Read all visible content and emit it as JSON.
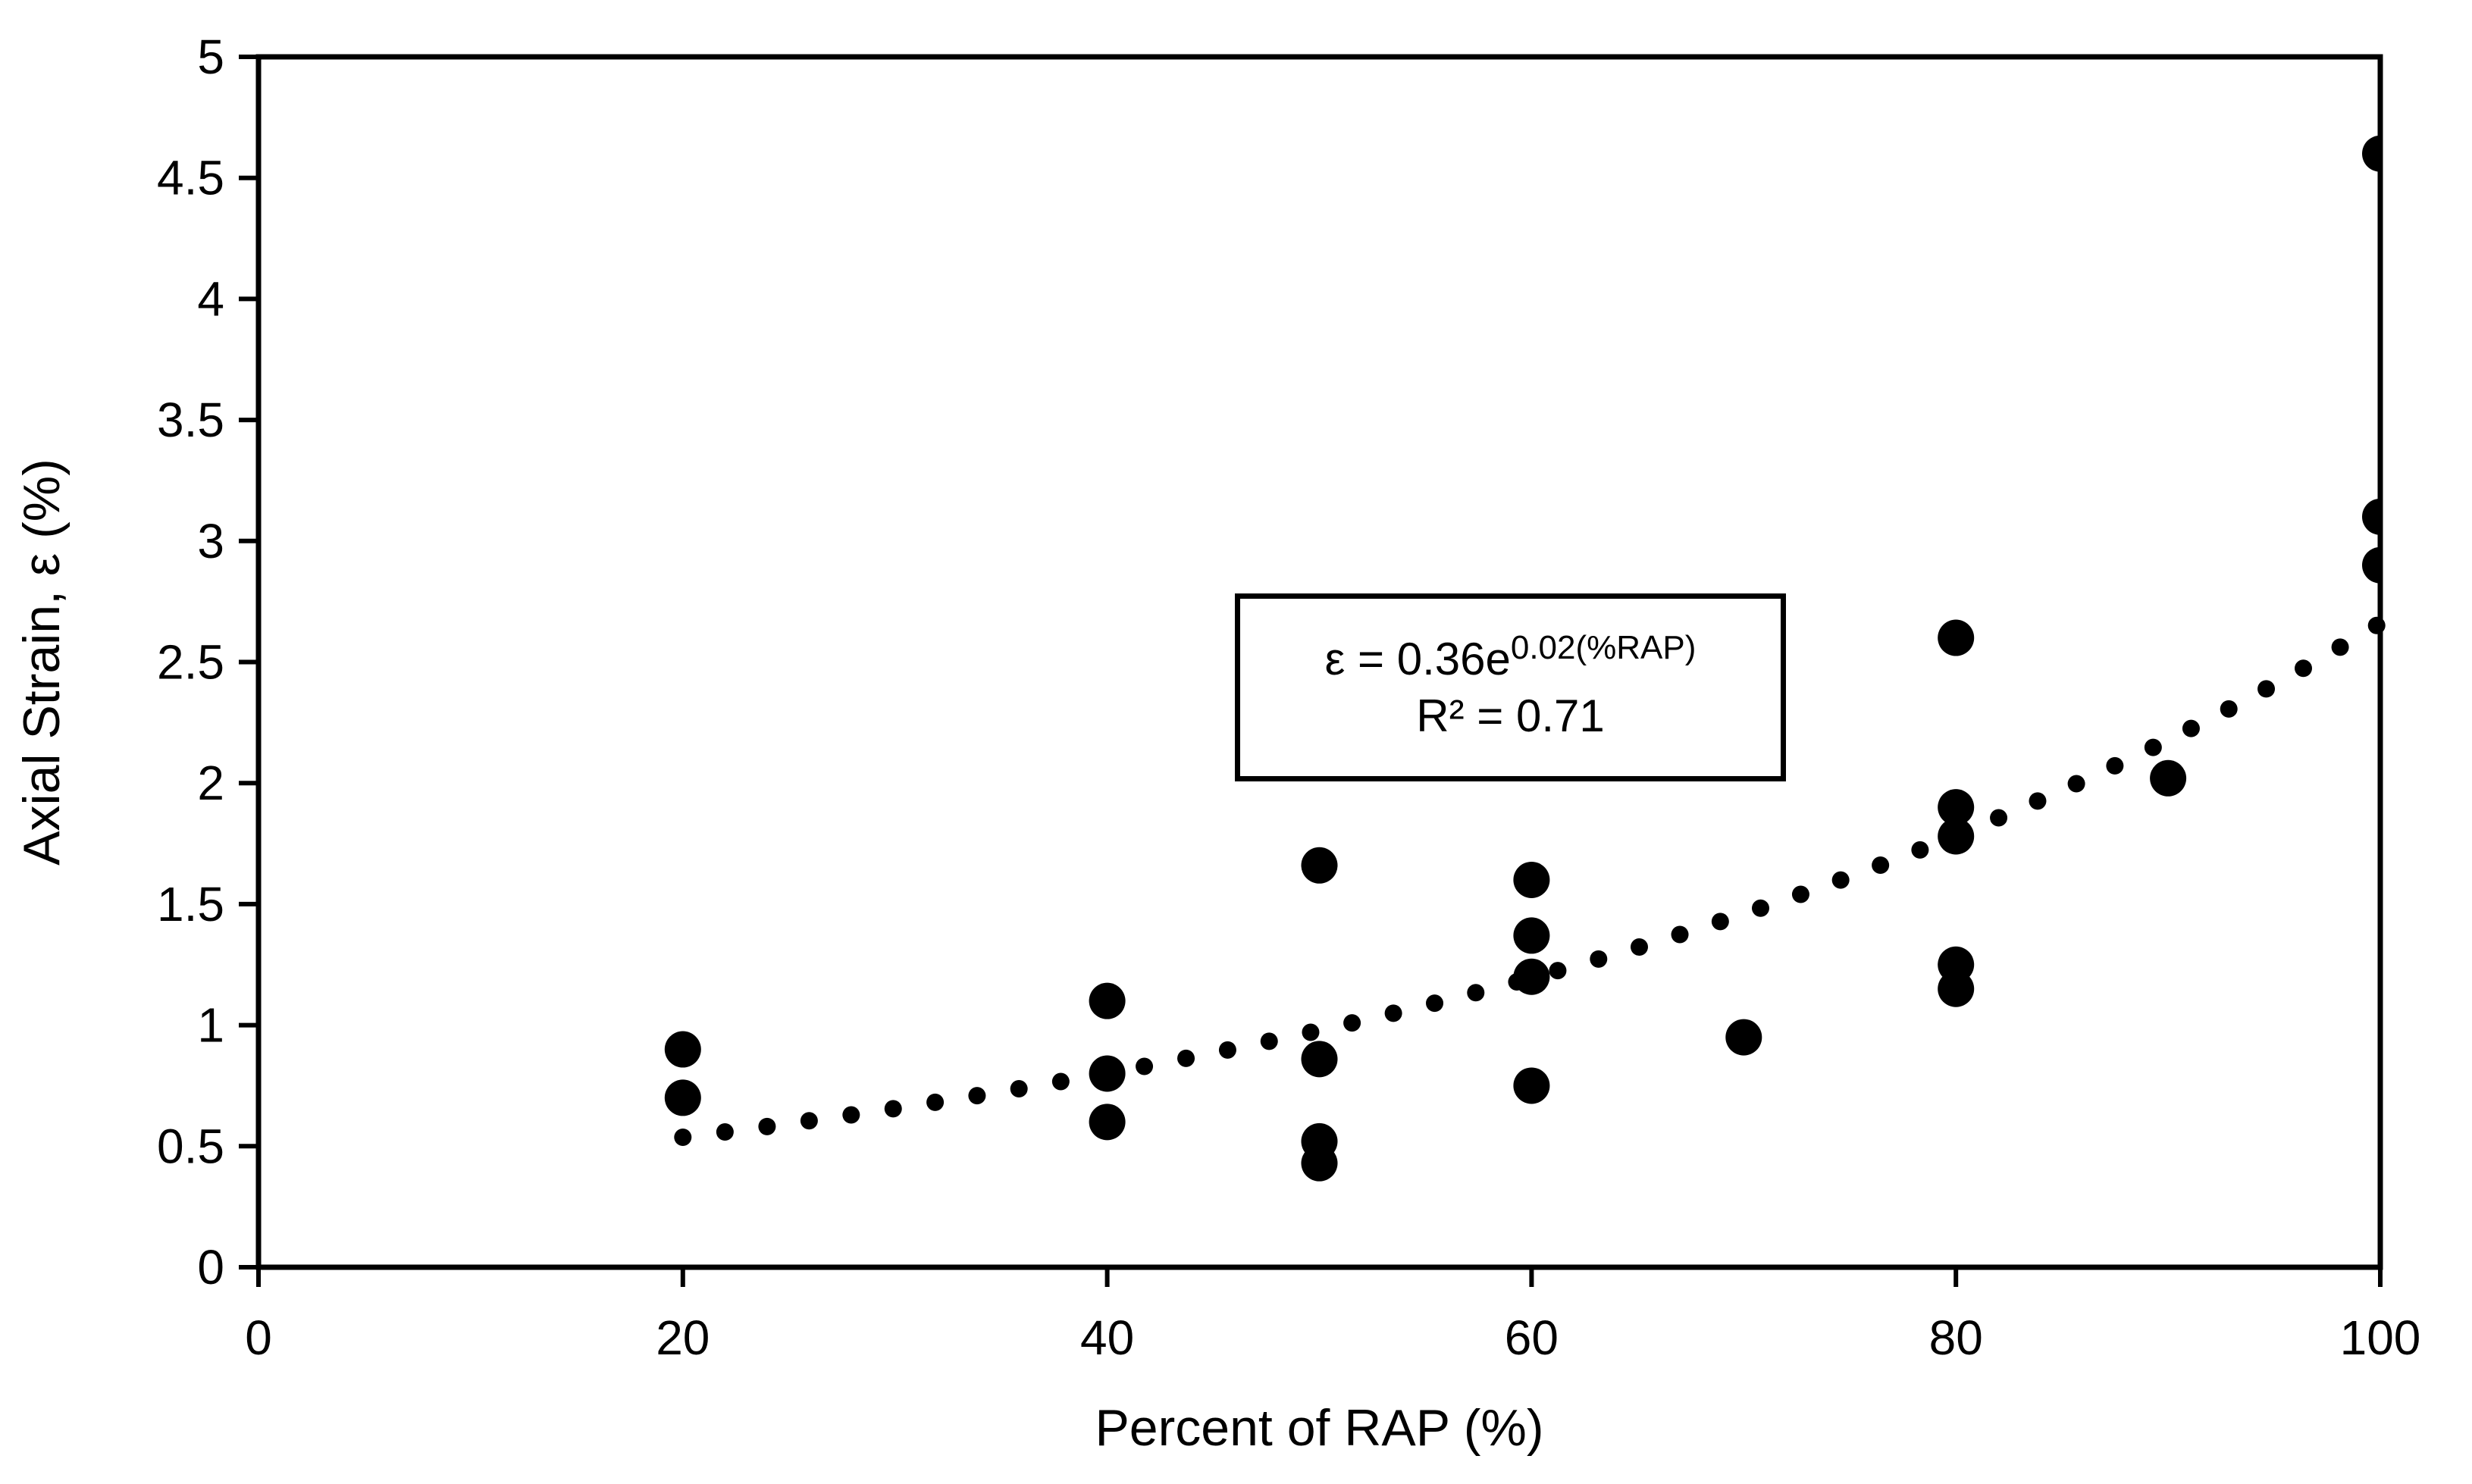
{
  "figure": {
    "background_color": "#ffffff",
    "foreground_color": "#000000"
  },
  "annotation": {
    "equation_base": "ε = 0.36e",
    "equation_exponent": "0.02(%RAP)",
    "r_squared": "R² = 0.71"
  },
  "chart_data": {
    "type": "scatter",
    "title": "",
    "xlabel": "Percent of RAP (%)",
    "ylabel": "Axial Strain, ε (%)",
    "xlim": [
      0,
      100
    ],
    "ylim": [
      0,
      5
    ],
    "xticks": [
      0,
      20,
      40,
      60,
      80,
      100
    ],
    "xtick_labels": [
      "0",
      "20",
      "40",
      "60",
      "80",
      "100"
    ],
    "yticks": [
      0,
      0.5,
      1,
      1.5,
      2,
      2.5,
      3,
      3.5,
      4,
      4.5,
      5
    ],
    "ytick_labels": [
      "0",
      "0.5",
      "1",
      "1.5",
      "2",
      "2.5",
      "3",
      "3.5",
      "4",
      "4.5",
      "5"
    ],
    "grid": false,
    "frame": true,
    "marker_color": "#000000",
    "points": [
      {
        "x": 20,
        "y": 0.9
      },
      {
        "x": 20,
        "y": 0.7
      },
      {
        "x": 40,
        "y": 1.1
      },
      {
        "x": 40,
        "y": 0.8
      },
      {
        "x": 40,
        "y": 0.6
      },
      {
        "x": 50,
        "y": 1.66
      },
      {
        "x": 50,
        "y": 0.86
      },
      {
        "x": 50,
        "y": 0.52
      },
      {
        "x": 50,
        "y": 0.43
      },
      {
        "x": 60,
        "y": 1.6
      },
      {
        "x": 60,
        "y": 1.37
      },
      {
        "x": 60,
        "y": 1.2
      },
      {
        "x": 60,
        "y": 0.75
      },
      {
        "x": 70,
        "y": 0.95
      },
      {
        "x": 80,
        "y": 2.6
      },
      {
        "x": 80,
        "y": 1.9
      },
      {
        "x": 80,
        "y": 1.78
      },
      {
        "x": 80,
        "y": 1.25
      },
      {
        "x": 80,
        "y": 1.15
      },
      {
        "x": 90,
        "y": 2.02
      },
      {
        "x": 100,
        "y": 4.6
      },
      {
        "x": 100,
        "y": 3.1
      },
      {
        "x": 100,
        "y": 2.9
      }
    ],
    "trendline": {
      "style": "dotted",
      "equation": "y = 0.36 * exp(0.02 * x)",
      "coef_a": 0.36,
      "coef_b": 0.02,
      "x_start": 20,
      "x_end": 100
    }
  }
}
